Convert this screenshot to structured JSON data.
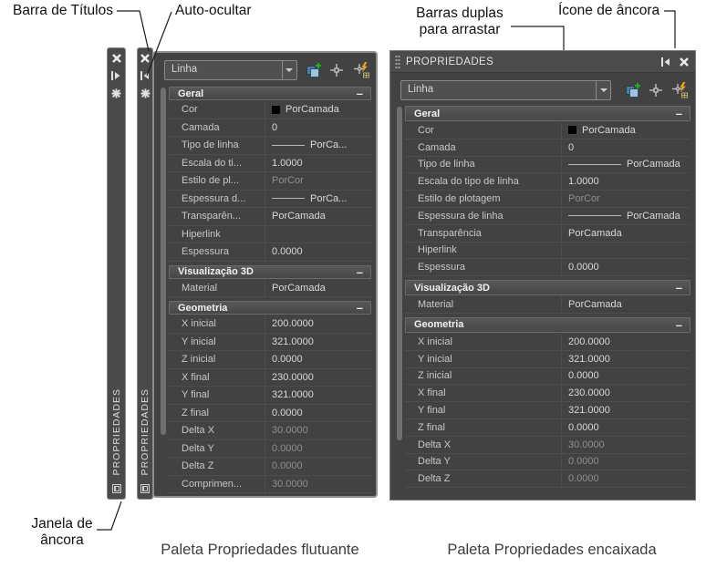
{
  "annotations": {
    "title_bar": "Barra de Títulos",
    "auto_hide": "Auto-ocultar",
    "double_bars_line1": "Barras duplas",
    "double_bars_line2": "para arrastar",
    "anchor_icon": "Ícone de âncora",
    "anchor_window_line1": "Janela de",
    "anchor_window_line2": "âncora"
  },
  "captions": {
    "floating": "Paleta Propriedades flutuante",
    "docked": "Paleta Propriedades encaixada"
  },
  "palette": {
    "title": "PROPRIEDADES",
    "selector_value": "Linha",
    "collapse_glyph": "–"
  },
  "colors": {
    "palette_bg": "#424242",
    "titlebar_bg": "#4a4a4a",
    "palette_border": "#8f8f8f",
    "label_text": "#c8c8c8",
    "value_text": "#d9d9d9",
    "muted_text": "#8f8f8f",
    "header_text": "#f2f2f2",
    "color_swatch": "#000000",
    "quick_select_blue": "#9fc4de",
    "quick_select_plus_green": "#1fae1f",
    "pickadd_bolt_orange": "#eda421"
  },
  "floating": {
    "sections": [
      {
        "name": "Geral",
        "rows": [
          {
            "label": "Cor",
            "value": "PorCamada",
            "kind": "swatch"
          },
          {
            "label": "Camada",
            "value": "0"
          },
          {
            "label": "Tipo de linha",
            "value": "PorCa...",
            "kind": "line"
          },
          {
            "label": "Escala do ti...",
            "value": "1.0000"
          },
          {
            "label": "Estilo de pl...",
            "value": "PorCor",
            "kind": "muted"
          },
          {
            "label": "Espessura  d...",
            "value": "PorCa...",
            "kind": "line"
          },
          {
            "label": "Transparên...",
            "value": "PorCamada"
          },
          {
            "label": "Hiperlink",
            "value": ""
          },
          {
            "label": "Espessura",
            "value": "0.0000"
          }
        ]
      },
      {
        "name": "Visualização 3D",
        "rows": [
          {
            "label": "Material",
            "value": "PorCamada"
          }
        ]
      },
      {
        "name": "Geometria",
        "rows": [
          {
            "label": "X inicial",
            "value": "200.0000"
          },
          {
            "label": "Y inicial",
            "value": "321.0000"
          },
          {
            "label": "Z inicial",
            "value": "0.0000"
          },
          {
            "label": "X final",
            "value": "230.0000"
          },
          {
            "label": "Y final",
            "value": "321.0000"
          },
          {
            "label": "Z final",
            "value": "0.0000"
          },
          {
            "label": "Delta X",
            "value": "30.0000",
            "kind": "muted"
          },
          {
            "label": "Delta Y",
            "value": "0.0000",
            "kind": "muted"
          },
          {
            "label": "Delta Z",
            "value": "0.0000",
            "kind": "muted"
          },
          {
            "label": "Comprimen...",
            "value": "30.0000",
            "kind": "muted"
          }
        ]
      }
    ]
  },
  "docked": {
    "sections": [
      {
        "name": "Geral",
        "rows": [
          {
            "label": "Cor",
            "value": "PorCamada",
            "kind": "swatch"
          },
          {
            "label": "Camada",
            "value": "0"
          },
          {
            "label": "Tipo de linha",
            "value": "PorCamada",
            "kind": "line"
          },
          {
            "label": "Escala do tipo de linha",
            "value": "1.0000"
          },
          {
            "label": "Estilo de plotagem",
            "value": "PorCor",
            "kind": "muted"
          },
          {
            "label": "Espessura de linha",
            "value": "PorCamada",
            "kind": "line"
          },
          {
            "label": "Transparência",
            "value": "PorCamada"
          },
          {
            "label": "Hiperlink",
            "value": ""
          },
          {
            "label": "Espessura",
            "value": "0.0000"
          }
        ]
      },
      {
        "name": "Visualização 3D",
        "rows": [
          {
            "label": "Material",
            "value": "PorCamada"
          }
        ]
      },
      {
        "name": "Geometria",
        "rows": [
          {
            "label": "X inicial",
            "value": "200.0000"
          },
          {
            "label": "Y inicial",
            "value": "321.0000"
          },
          {
            "label": "Z inicial",
            "value": "0.0000"
          },
          {
            "label": "X final",
            "value": "230.0000"
          },
          {
            "label": "Y final",
            "value": "321.0000"
          },
          {
            "label": "Z final",
            "value": "0.0000"
          },
          {
            "label": "Delta X",
            "value": "30.0000",
            "kind": "muted"
          },
          {
            "label": "Delta Y",
            "value": "0.0000",
            "kind": "muted"
          },
          {
            "label": "Delta Z",
            "value": "0.0000",
            "kind": "muted"
          }
        ]
      }
    ]
  }
}
